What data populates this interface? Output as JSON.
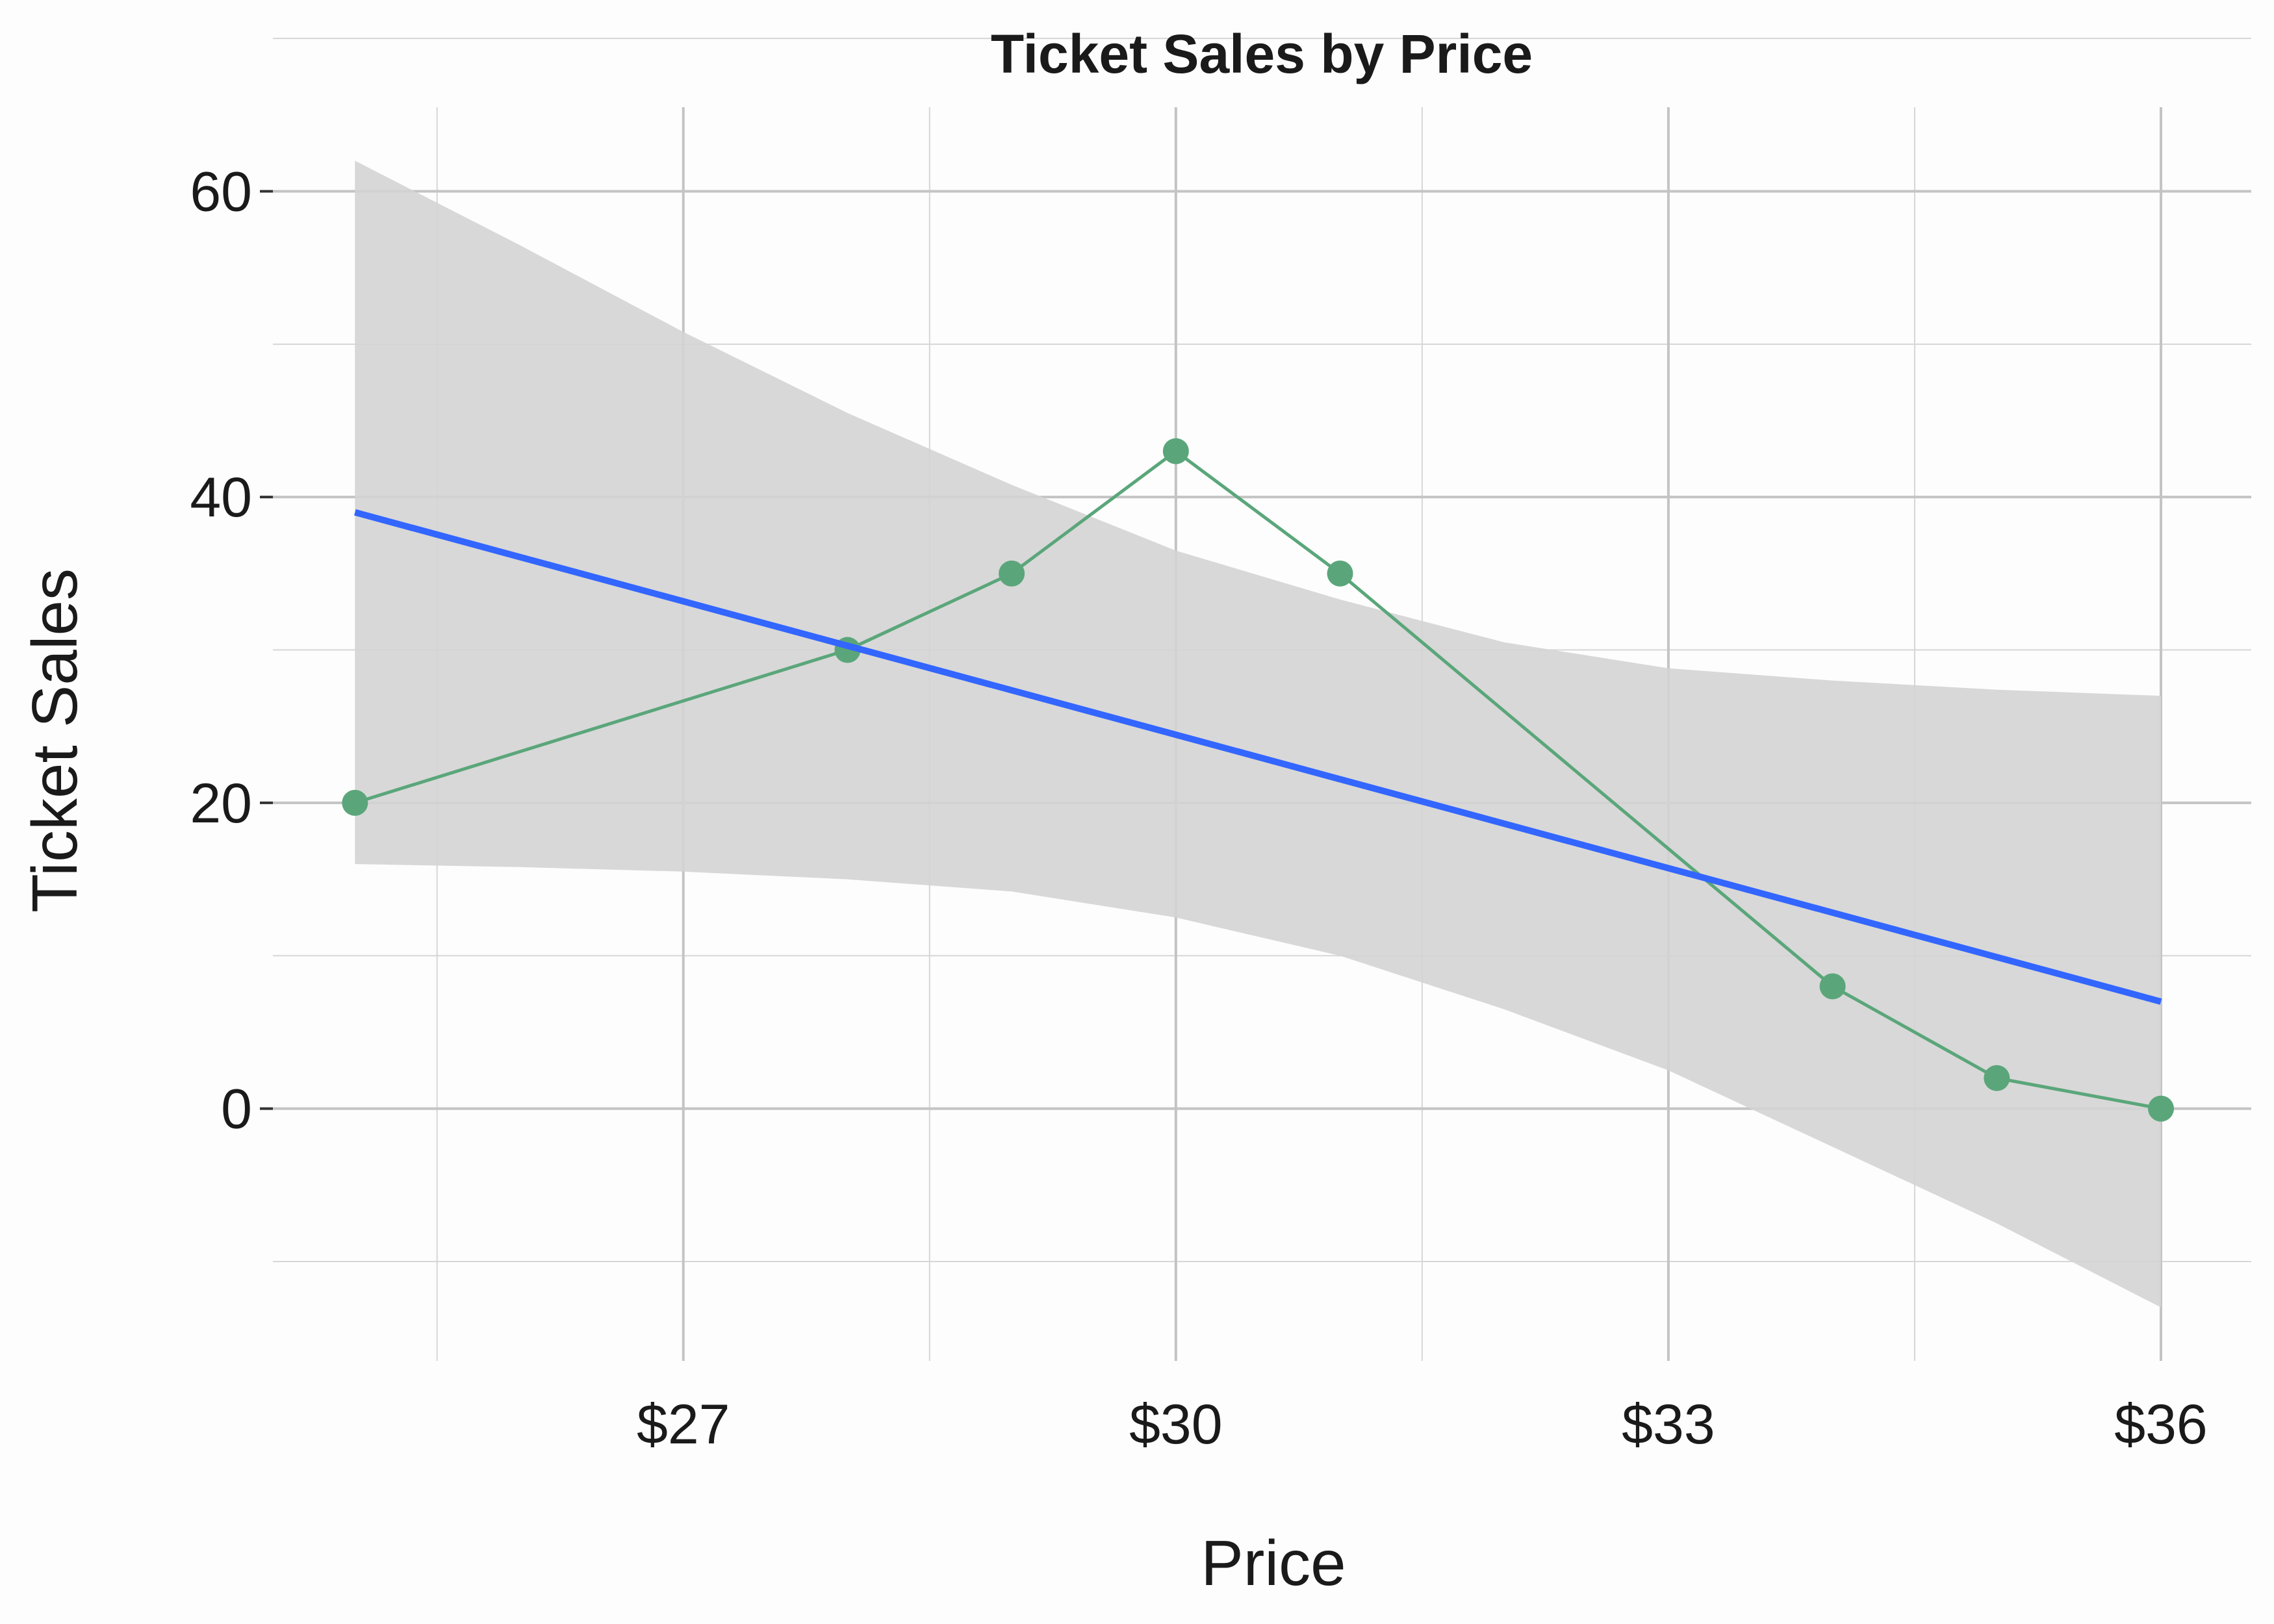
{
  "chart_data": {
    "type": "line",
    "title": "Ticket Sales by Price",
    "xlabel": "Price",
    "ylabel": "Ticket Sales",
    "x_ticks": [
      27,
      30,
      33,
      36
    ],
    "x_tick_labels": [
      "$27",
      "$30",
      "$33",
      "$36"
    ],
    "y_ticks": [
      0,
      20,
      40,
      60
    ],
    "y_tick_labels": [
      "0",
      "20",
      "40",
      "60"
    ],
    "xlim": [
      24.5,
      36.55
    ],
    "ylim": [
      -16.5,
      65.5
    ],
    "grid": true,
    "legend": "none",
    "series": [
      {
        "type": "line+markers",
        "color": "#5aa67a",
        "x": [
          25,
          28,
          29,
          30,
          31,
          34,
          35,
          36
        ],
        "y": [
          20,
          30,
          35,
          43,
          35,
          8,
          2,
          0
        ]
      }
    ],
    "trend_line": {
      "type": "linear-fit",
      "color": "#3366ff",
      "x": [
        25,
        36
      ],
      "y": [
        39,
        7
      ]
    },
    "confidence_band": {
      "color": "#d4d4d4",
      "x": [
        25,
        26,
        27,
        28,
        29,
        30,
        31,
        32,
        33,
        34,
        35,
        36
      ],
      "upper": [
        62,
        56.5,
        50.8,
        45.5,
        40.8,
        36.5,
        33.3,
        30.5,
        28.8,
        28,
        27.4,
        27
      ],
      "lower": [
        16,
        15.8,
        15.5,
        15,
        14.2,
        12.5,
        10,
        6.5,
        2.5,
        -2.5,
        -7.5,
        -13
      ]
    }
  }
}
